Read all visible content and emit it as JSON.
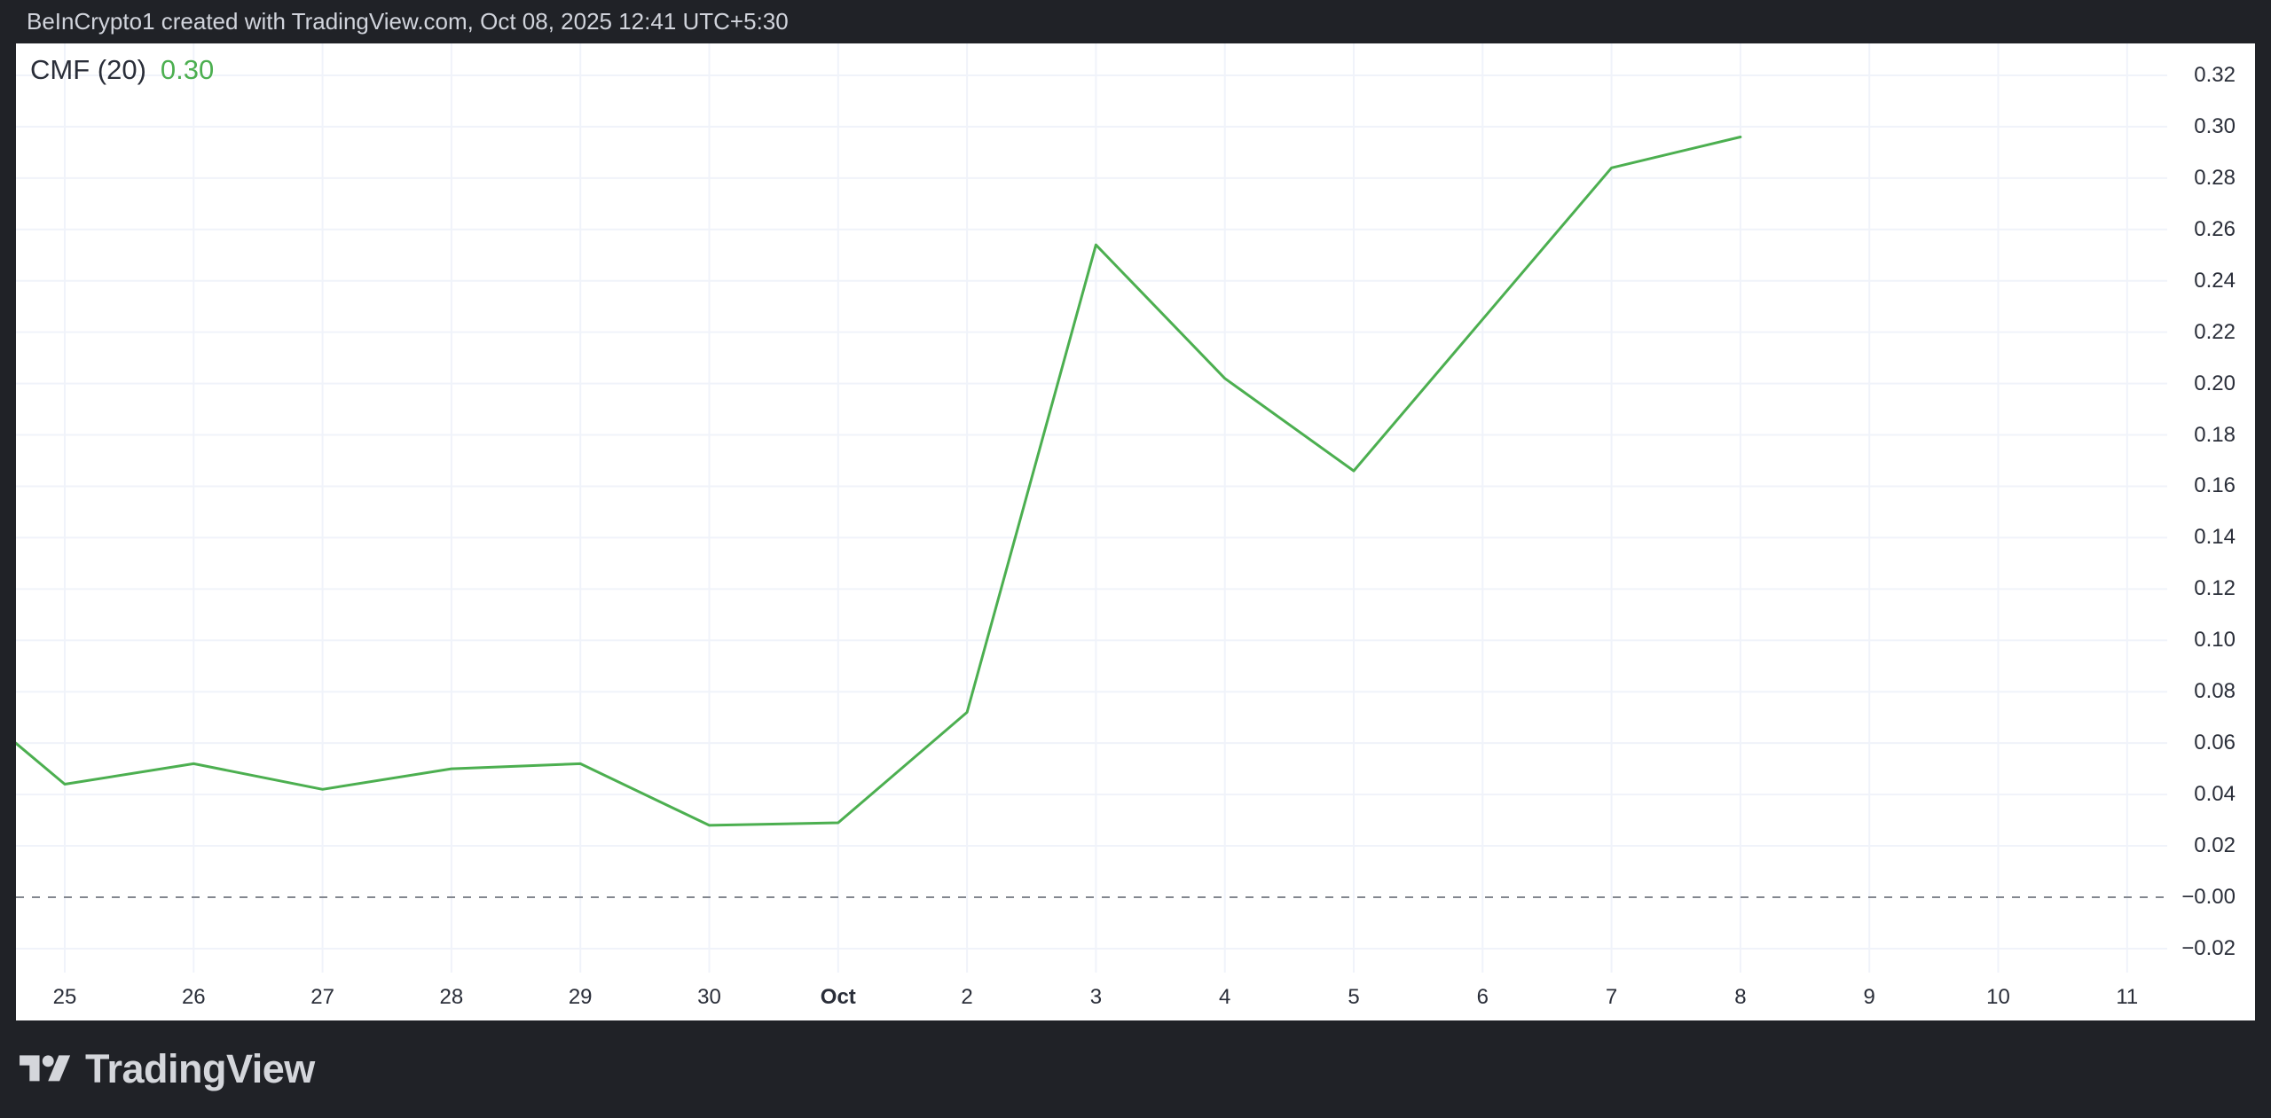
{
  "header": {
    "attribution": "BeInCrypto1 created with TradingView.com, Oct 08, 2025 12:41 UTC+5:30"
  },
  "indicator": {
    "name": "CMF (20)",
    "value": "0.30"
  },
  "footer": {
    "brand": "TradingView",
    "logo_icon": "tradingview-logo-icon"
  },
  "colors": {
    "background": "#202227",
    "panel": "#ffffff",
    "line": "#4caf50",
    "grid": "#f0f3fa",
    "zero_line": "#83878f",
    "axis_text": "#2a2e39",
    "header_text": "#d1d4dc",
    "footer_text": "#d4d6db"
  },
  "chart_data": {
    "type": "line",
    "title": "CMF (20)",
    "legend_position": "top-left",
    "grid": true,
    "x_ticks": [
      {
        "label": "25",
        "bold": false
      },
      {
        "label": "26",
        "bold": false
      },
      {
        "label": "27",
        "bold": false
      },
      {
        "label": "28",
        "bold": false
      },
      {
        "label": "29",
        "bold": false
      },
      {
        "label": "30",
        "bold": false
      },
      {
        "label": "Oct",
        "bold": true
      },
      {
        "label": "2",
        "bold": false
      },
      {
        "label": "3",
        "bold": false
      },
      {
        "label": "4",
        "bold": false
      },
      {
        "label": "5",
        "bold": false
      },
      {
        "label": "6",
        "bold": false
      },
      {
        "label": "7",
        "bold": false
      },
      {
        "label": "8",
        "bold": false
      },
      {
        "label": "9",
        "bold": false
      },
      {
        "label": "10",
        "bold": false
      },
      {
        "label": "11",
        "bold": false
      }
    ],
    "y_ticks": [
      {
        "label": "0.32",
        "value": 0.32
      },
      {
        "label": "0.30",
        "value": 0.3
      },
      {
        "label": "0.28",
        "value": 0.28
      },
      {
        "label": "0.26",
        "value": 0.26
      },
      {
        "label": "0.24",
        "value": 0.24
      },
      {
        "label": "0.22",
        "value": 0.22
      },
      {
        "label": "0.20",
        "value": 0.2
      },
      {
        "label": "0.18",
        "value": 0.18
      },
      {
        "label": "0.16",
        "value": 0.16
      },
      {
        "label": "0.14",
        "value": 0.14
      },
      {
        "label": "0.12",
        "value": 0.12
      },
      {
        "label": "0.10",
        "value": 0.1
      },
      {
        "label": "0.08",
        "value": 0.08
      },
      {
        "label": "0.06",
        "value": 0.06
      },
      {
        "label": "0.04",
        "value": 0.04
      },
      {
        "label": "0.02",
        "value": 0.02
      },
      {
        "label": "−0.00",
        "value": 0.0
      },
      {
        "label": "−0.02",
        "value": -0.02
      }
    ],
    "y_visible_range": [
      -0.03,
      0.33
    ],
    "zero_line": {
      "value": 0,
      "style": "dashed"
    },
    "series": [
      {
        "name": "CMF (20)",
        "color": "#4caf50",
        "points": [
          {
            "tick": -0.38,
            "label": "left-edge",
            "value": 0.06
          },
          {
            "tick": 0,
            "label": "Sep 25",
            "value": 0.044
          },
          {
            "tick": 1,
            "label": "Sep 26",
            "value": 0.052
          },
          {
            "tick": 2,
            "label": "Sep 27",
            "value": 0.042
          },
          {
            "tick": 3,
            "label": "Sep 28",
            "value": 0.05
          },
          {
            "tick": 4,
            "label": "Sep 29",
            "value": 0.052
          },
          {
            "tick": 5,
            "label": "Sep 30",
            "value": 0.028
          },
          {
            "tick": 6,
            "label": "Oct 1",
            "value": 0.029
          },
          {
            "tick": 7,
            "label": "Oct 2",
            "value": 0.072
          },
          {
            "tick": 8,
            "label": "Oct 3",
            "value": 0.254
          },
          {
            "tick": 9,
            "label": "Oct 4",
            "value": 0.202
          },
          {
            "tick": 10,
            "label": "Oct 5",
            "value": 0.166
          },
          {
            "tick": 11,
            "label": "Oct 6",
            "value": 0.225
          },
          {
            "tick": 12,
            "label": "Oct 7",
            "value": 0.284
          },
          {
            "tick": 13,
            "label": "Oct 8",
            "value": 0.296
          }
        ]
      }
    ]
  }
}
